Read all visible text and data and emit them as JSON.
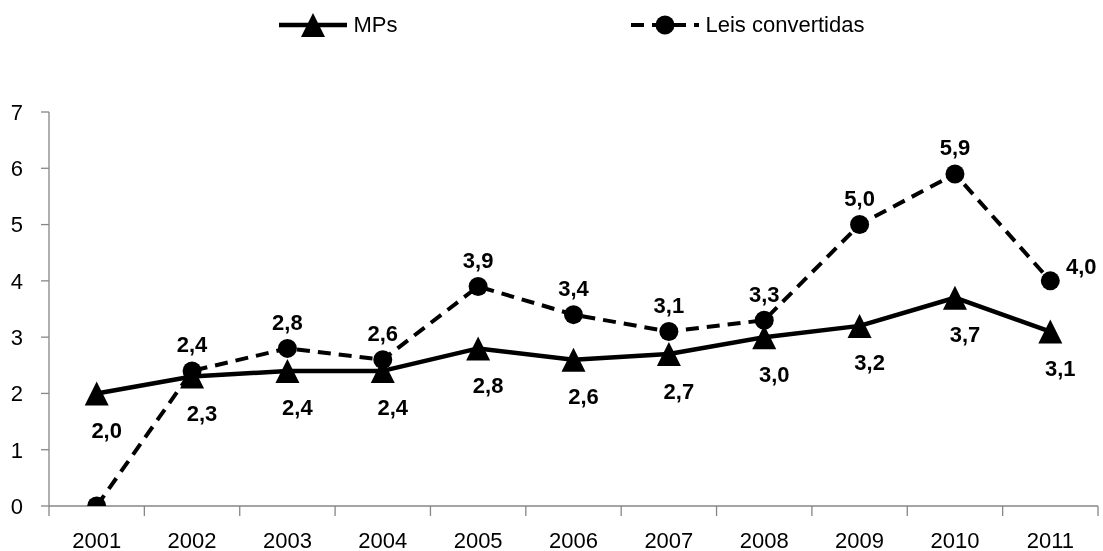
{
  "chart_data": {
    "type": "line",
    "categories": [
      "2001",
      "2002",
      "2003",
      "2004",
      "2005",
      "2006",
      "2007",
      "2008",
      "2009",
      "2010",
      "2011"
    ],
    "series": [
      {
        "name": "MPs",
        "color": "#000000",
        "marker": "triangle",
        "line_style": "solid",
        "values": [
          2.0,
          2.3,
          2.4,
          2.4,
          2.8,
          2.6,
          2.7,
          3.0,
          3.2,
          3.7,
          3.1
        ],
        "value_labels": [
          "2,0",
          "2,3",
          "2,4",
          "2,4",
          "2,8",
          "2,6",
          "2,7",
          "3,0",
          "3,2",
          "3,7",
          "3,1"
        ]
      },
      {
        "name": "Leis convertidas",
        "color": "#000000",
        "marker": "circle",
        "line_style": "dashed",
        "values": [
          0,
          2.4,
          2.8,
          2.6,
          3.9,
          3.4,
          3.1,
          3.3,
          5.0,
          5.9,
          4.0
        ],
        "value_labels": [
          null,
          "2,4",
          "2,8",
          "2,6",
          "3,9",
          "3,4",
          "3,1",
          "3,3",
          "5,0",
          "5,9",
          "4,0"
        ]
      }
    ],
    "ylim": [
      0,
      7
    ],
    "yticks": [
      0,
      1,
      2,
      3,
      4,
      5,
      6,
      7
    ],
    "legend": "top"
  }
}
